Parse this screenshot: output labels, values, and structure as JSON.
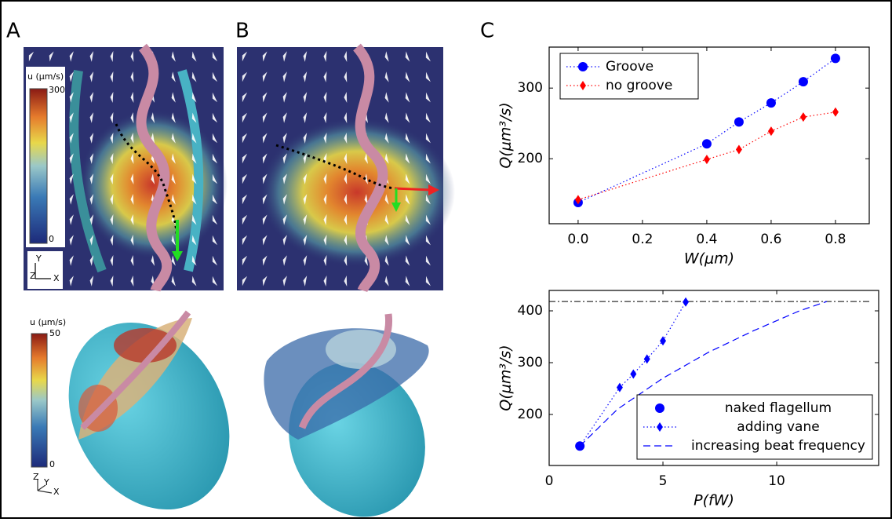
{
  "panels": {
    "A": {
      "label": "A",
      "colorbar_top": {
        "title": "u (µm/s)",
        "max": 300,
        "min": 0
      },
      "colorbar_bottom": {
        "title": "u (µm/s)",
        "max": 50,
        "min": 0
      },
      "axes_top": [
        "Y",
        "Z",
        "X"
      ],
      "axes_bottom": [
        "Z",
        "Y",
        "X"
      ]
    },
    "B": {
      "label": "B"
    },
    "C": {
      "label": "C"
    }
  },
  "chart_data": [
    {
      "type": "line",
      "x_label": "W(μm)",
      "y_label": "Q(μm³/s)",
      "xlim": [
        -0.09,
        0.905
      ],
      "ylim": [
        108,
        358
      ],
      "xticks": [
        {
          "value": 0,
          "label": "0.0"
        },
        {
          "value": 0.2,
          "label": "0.2"
        },
        {
          "value": 0.4,
          "label": "0.4"
        },
        {
          "value": 0.6,
          "label": "0.6"
        },
        {
          "value": 0.8,
          "label": "0.8"
        }
      ],
      "yticks": [
        200,
        300
      ],
      "legend": "top-left",
      "series": [
        {
          "name": "Groove",
          "color": "#0000ff",
          "marker": "circle",
          "linestyle": "dotted",
          "x": [
            0,
            0.4,
            0.5,
            0.6,
            0.7,
            0.8
          ],
          "values": [
            138,
            221,
            252,
            279,
            309,
            342
          ]
        },
        {
          "name": "no groove",
          "color": "#ff0000",
          "marker": "diamond",
          "linestyle": "dotted",
          "x": [
            0,
            0.4,
            0.5,
            0.6,
            0.7,
            0.8
          ],
          "values": [
            142,
            199,
            213,
            239,
            259,
            266
          ]
        }
      ]
    },
    {
      "type": "line",
      "x_label": "P(fW)",
      "y_label": "Q(μm³/s)",
      "xlim": [
        0,
        14.48
      ],
      "ylim": [
        101.5,
        439.4
      ],
      "xticks": [
        0,
        5,
        10
      ],
      "yticks": [
        200,
        300,
        400
      ],
      "legend": "bottom-right",
      "reference_line": 418,
      "series": [
        {
          "name": "naked flagellum",
          "color": "#0000ff",
          "marker": "circle",
          "linestyle": "none",
          "x": [
            1.35
          ],
          "values": [
            139
          ]
        },
        {
          "name": "adding vane",
          "color": "#0000ff",
          "marker": "diamond",
          "linestyle": "dotted",
          "x": [
            1.35,
            3.1,
            3.7,
            4.3,
            5.0,
            6.0
          ],
          "values": [
            139,
            252,
            278,
            307,
            342,
            417
          ]
        },
        {
          "name": "increasing beat frequency",
          "color": "#0000ff",
          "marker": "none",
          "linestyle": "dashed",
          "x": [
            1.35,
            3,
            5,
            7,
            9,
            11,
            12.2
          ],
          "values": [
            139,
            210,
            270,
            320,
            362,
            400,
            418
          ]
        }
      ]
    }
  ]
}
